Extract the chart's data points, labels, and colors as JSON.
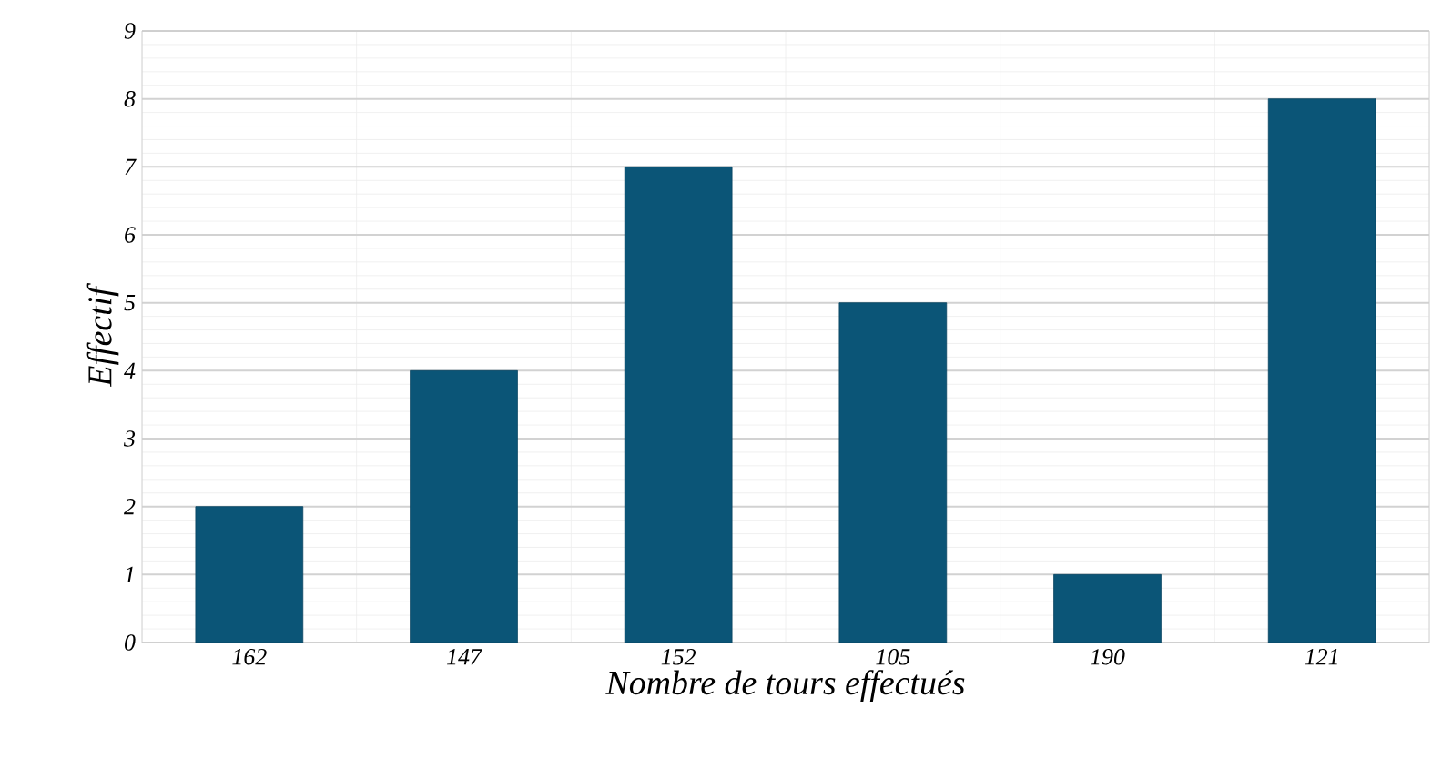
{
  "chart_data": {
    "type": "bar",
    "xlabel": "Nombre de tours effectués",
    "ylabel": "Effectif",
    "categories": [
      "162",
      "147",
      "152",
      "105",
      "190",
      "121"
    ],
    "values": [
      2,
      4,
      7,
      5,
      1,
      8
    ],
    "color": "#0b5577",
    "ylim": [
      0,
      9
    ],
    "yticks": [
      0,
      1,
      2,
      3,
      4,
      5,
      6,
      7,
      8,
      9
    ],
    "grid": true
  }
}
